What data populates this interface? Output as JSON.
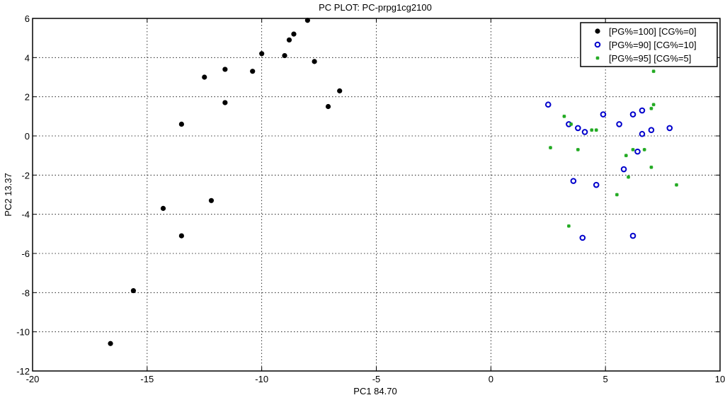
{
  "chart_data": {
    "type": "scatter",
    "title": "PC PLOT: PC-prpg1cg2100",
    "xlabel": "PC1 84.70",
    "ylabel": "PC2 13.37",
    "xlim": [
      -20,
      10
    ],
    "ylim": [
      -12,
      6
    ],
    "xticks": [
      -20,
      -15,
      -10,
      -5,
      0,
      5,
      10
    ],
    "yticks": [
      -12,
      -10,
      -8,
      -6,
      -4,
      -2,
      0,
      2,
      4,
      6
    ],
    "grid": true,
    "legend_position": "top-right",
    "series": [
      {
        "name": "[PG%=100] [CG%=0]",
        "marker": "filled-dot",
        "color": "#000000",
        "points": [
          [
            -8.0,
            5.9
          ],
          [
            -8.6,
            5.2
          ],
          [
            -8.8,
            4.9
          ],
          [
            -10.0,
            4.2
          ],
          [
            -9.0,
            4.1
          ],
          [
            -7.7,
            3.8
          ],
          [
            -11.6,
            3.4
          ],
          [
            -10.4,
            3.3
          ],
          [
            -12.5,
            3.0
          ],
          [
            -6.6,
            2.3
          ],
          [
            -11.6,
            1.7
          ],
          [
            -7.1,
            1.5
          ],
          [
            -13.5,
            0.6
          ],
          [
            -12.2,
            -3.3
          ],
          [
            -14.3,
            -3.7
          ],
          [
            -13.5,
            -5.1
          ],
          [
            -15.6,
            -7.9
          ],
          [
            -16.6,
            -10.6
          ]
        ]
      },
      {
        "name": "[PG%=90] [CG%=10]",
        "marker": "open-circle",
        "color": "#0000cc",
        "points": [
          [
            2.5,
            1.6
          ],
          [
            4.9,
            1.1
          ],
          [
            6.2,
            1.1
          ],
          [
            6.6,
            1.3
          ],
          [
            5.6,
            0.6
          ],
          [
            3.4,
            0.6
          ],
          [
            3.8,
            0.4
          ],
          [
            4.1,
            0.2
          ],
          [
            7.0,
            0.3
          ],
          [
            7.8,
            0.4
          ],
          [
            6.6,
            0.1
          ],
          [
            6.4,
            -0.8
          ],
          [
            5.8,
            -1.7
          ],
          [
            3.6,
            -2.3
          ],
          [
            4.6,
            -2.5
          ],
          [
            6.2,
            -5.1
          ],
          [
            4.0,
            -5.2
          ]
        ]
      },
      {
        "name": "[PG%=95] [CG%=5]",
        "marker": "small-star",
        "color": "#22aa22",
        "points": [
          [
            7.1,
            3.3
          ],
          [
            7.1,
            1.6
          ],
          [
            7.0,
            1.4
          ],
          [
            3.2,
            1.0
          ],
          [
            3.5,
            0.6
          ],
          [
            4.4,
            0.3
          ],
          [
            4.6,
            0.3
          ],
          [
            2.6,
            -0.6
          ],
          [
            3.8,
            -0.7
          ],
          [
            6.7,
            -0.7
          ],
          [
            6.2,
            -0.7
          ],
          [
            5.9,
            -1.0
          ],
          [
            7.0,
            -1.6
          ],
          [
            6.0,
            -2.1
          ],
          [
            8.1,
            -2.5
          ],
          [
            5.5,
            -3.0
          ],
          [
            3.4,
            -4.6
          ]
        ]
      }
    ]
  }
}
